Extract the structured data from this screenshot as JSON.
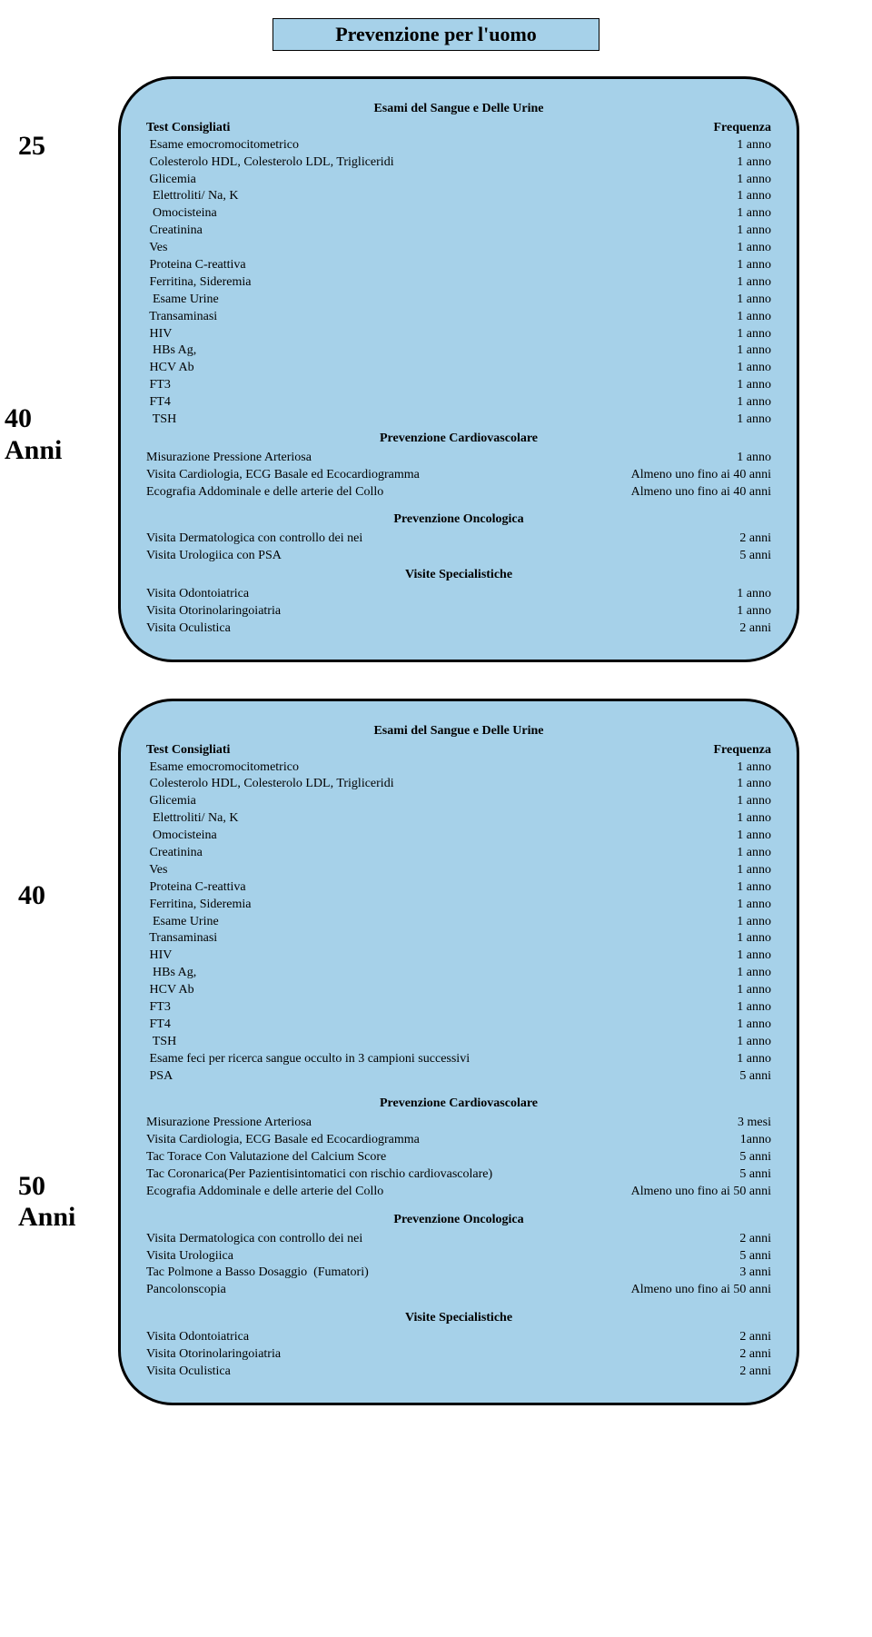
{
  "page_title": "Prevenzione per l'uomo",
  "colors": {
    "card_bg": "#a6d1e9",
    "border": "#000000",
    "page_bg": "#ffffff",
    "text": "#000000"
  },
  "age_labels": {
    "card1_top": "25",
    "card1_bottom": "40",
    "card1_anni": "Anni",
    "card2_top": "40",
    "card2_bottom": "50",
    "card2_anni": "Anni"
  },
  "section_headings": {
    "esami": "Esami del Sangue e Delle Urine",
    "cardio": "Prevenzione Cardiovascolare",
    "onco": "Prevenzione Oncologica",
    "visite": "Visite Specialistiche"
  },
  "header_row": {
    "test": "Test Consigliati",
    "freq": "Frequenza"
  },
  "card1": {
    "esami": [
      {
        "label": " Esame emocromocitometrico",
        "freq": "1 anno"
      },
      {
        "label": " Colesterolo HDL, Colesterolo LDL, Trigliceridi",
        "freq": "1 anno"
      },
      {
        "label": " Glicemia",
        "freq": "1 anno"
      },
      {
        "label": "  Elettroliti/ Na, K",
        "freq": "1 anno"
      },
      {
        "label": "  Omocisteina",
        "freq": "1 anno"
      },
      {
        "label": " Creatinina",
        "freq": "1 anno"
      },
      {
        "label": " Ves",
        "freq": "1 anno"
      },
      {
        "label": " Proteina C-reattiva",
        "freq": "1 anno"
      },
      {
        "label": " Ferritina, Sideremia",
        "freq": "1 anno"
      },
      {
        "label": "  Esame Urine",
        "freq": "1 anno"
      },
      {
        "label": " Transaminasi",
        "freq": "1 anno"
      },
      {
        "label": " HIV",
        "freq": "1 anno"
      },
      {
        "label": "  HBs Ag,",
        "freq": "1 anno"
      },
      {
        "label": " HCV Ab",
        "freq": "1 anno"
      },
      {
        "label": " FT3",
        "freq": "1 anno"
      },
      {
        "label": " FT4",
        "freq": "1 anno"
      },
      {
        "label": "  TSH",
        "freq": "1 anno"
      }
    ],
    "cardio": [
      {
        "label": "Misurazione Pressione Arteriosa",
        "freq": "1 anno"
      },
      {
        "label": "Visita Cardiologia, ECG Basale ed Ecocardiogramma",
        "freq": "Almeno uno fino ai 40 anni"
      },
      {
        "label": "Ecografia Addominale e delle arterie del Collo",
        "freq": "Almeno uno fino ai 40 anni"
      }
    ],
    "onco": [
      {
        "label": "Visita Dermatologica con controllo dei nei",
        "freq": "2 anni"
      },
      {
        "label": "Visita Urologiica con PSA",
        "freq": "5 anni"
      }
    ],
    "visite": [
      {
        "label": "Visita Odontoiatrica",
        "freq": "1 anno"
      },
      {
        "label": "Visita Otorinolaringoiatria",
        "freq": "1 anno"
      },
      {
        "label": "Visita Oculistica",
        "freq": "2 anni"
      }
    ]
  },
  "card2": {
    "esami": [
      {
        "label": " Esame emocromocitometrico",
        "freq": "1 anno"
      },
      {
        "label": " Colesterolo HDL, Colesterolo LDL, Trigliceridi",
        "freq": "1 anno"
      },
      {
        "label": " Glicemia",
        "freq": "1 anno"
      },
      {
        "label": "  Elettroliti/ Na, K",
        "freq": "1 anno"
      },
      {
        "label": "  Omocisteina",
        "freq": "1 anno"
      },
      {
        "label": " Creatinina",
        "freq": "1 anno"
      },
      {
        "label": " Ves",
        "freq": "1 anno"
      },
      {
        "label": " Proteina C-reattiva",
        "freq": "1 anno"
      },
      {
        "label": " Ferritina, Sideremia",
        "freq": "1 anno"
      },
      {
        "label": "  Esame Urine",
        "freq": "1 anno"
      },
      {
        "label": " Transaminasi",
        "freq": "1 anno"
      },
      {
        "label": " HIV",
        "freq": "1 anno"
      },
      {
        "label": "  HBs Ag,",
        "freq": "1 anno"
      },
      {
        "label": " HCV Ab",
        "freq": "1 anno"
      },
      {
        "label": " FT3",
        "freq": "1 anno"
      },
      {
        "label": " FT4",
        "freq": "1 anno"
      },
      {
        "label": "  TSH",
        "freq": "1 anno"
      },
      {
        "label": " Esame feci per ricerca sangue occulto in 3 campioni successivi",
        "freq": "1 anno"
      },
      {
        "label": " PSA",
        "freq": "5 anni"
      }
    ],
    "cardio": [
      {
        "label": "Misurazione Pressione Arteriosa",
        "freq": "3 mesi"
      },
      {
        "label": "Visita Cardiologia, ECG Basale ed Ecocardiogramma",
        "freq": "1anno"
      },
      {
        "label": "Tac Torace Con Valutazione del Calcium Score",
        "freq": "5 anni"
      },
      {
        "label": "Tac Coronarica(Per Pazientisintomatici con rischio cardiovascolare)",
        "freq": "5 anni"
      },
      {
        "label": "Ecografia Addominale e delle arterie del Collo",
        "freq": "Almeno uno fino ai 50 anni"
      }
    ],
    "onco": [
      {
        "label": "Visita Dermatologica con controllo dei nei",
        "freq": "2 anni"
      },
      {
        "label": "Visita Urologiica",
        "freq": "5 anni"
      },
      {
        "label": "Tac Polmone a Basso Dosaggio  (Fumatori)",
        "freq": "3 anni"
      },
      {
        "label": "Pancolonscopia",
        "freq": "Almeno uno fino ai 50 anni"
      }
    ],
    "visite": [
      {
        "label": "Visita Odontoiatrica",
        "freq": "2 anni"
      },
      {
        "label": "Visita Otorinolaringoiatria",
        "freq": "2 anni"
      },
      {
        "label": "Visita Oculistica",
        "freq": "2 anni"
      }
    ]
  }
}
